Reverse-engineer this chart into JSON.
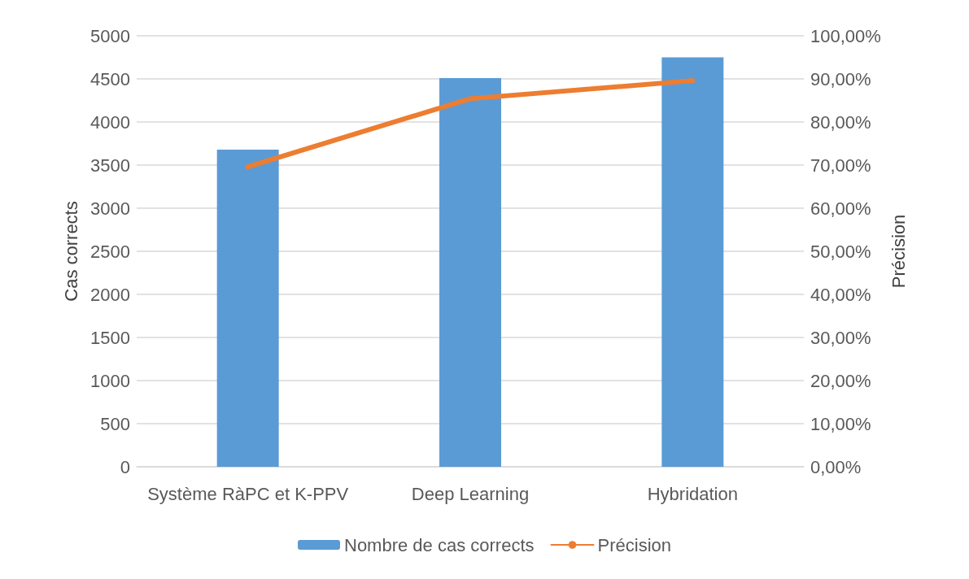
{
  "chart_data": {
    "type": "bar",
    "ylabel": "Cas corrects",
    "y2label": "Précision",
    "categories": [
      "Système RàPC et K-PPV",
      "Deep Learning",
      "Hybridation"
    ],
    "series": [
      {
        "name": "Nombre de cas corrects",
        "color": "#5b9bd5",
        "values": [
          3680,
          4510,
          4750
        ]
      },
      {
        "name": "Précision",
        "type": "line",
        "axis": "y2",
        "color": "#ed7d31",
        "values": [
          69.6,
          85.4,
          89.6
        ]
      }
    ],
    "ylim": [
      0,
      5000
    ],
    "yticks": [
      0,
      500,
      1000,
      1500,
      2000,
      2500,
      3000,
      3500,
      4000,
      4500,
      5000
    ],
    "y2lim": [
      0,
      100
    ],
    "y2ticks": [
      {
        "value": 0,
        "label": "0,00%"
      },
      {
        "value": 10,
        "label": "10,00%"
      },
      {
        "value": 20,
        "label": "20,00%"
      },
      {
        "value": 30,
        "label": "30,00%"
      },
      {
        "value": 40,
        "label": "40,00%"
      },
      {
        "value": 50,
        "label": "50,00%"
      },
      {
        "value": 60,
        "label": "60,00%"
      },
      {
        "value": 70,
        "label": "70,00%"
      },
      {
        "value": 80,
        "label": "80,00%"
      },
      {
        "value": 90,
        "label": "90,00%"
      },
      {
        "value": 100,
        "label": "100,00%"
      }
    ],
    "grid": "y",
    "legend": "bottom"
  }
}
